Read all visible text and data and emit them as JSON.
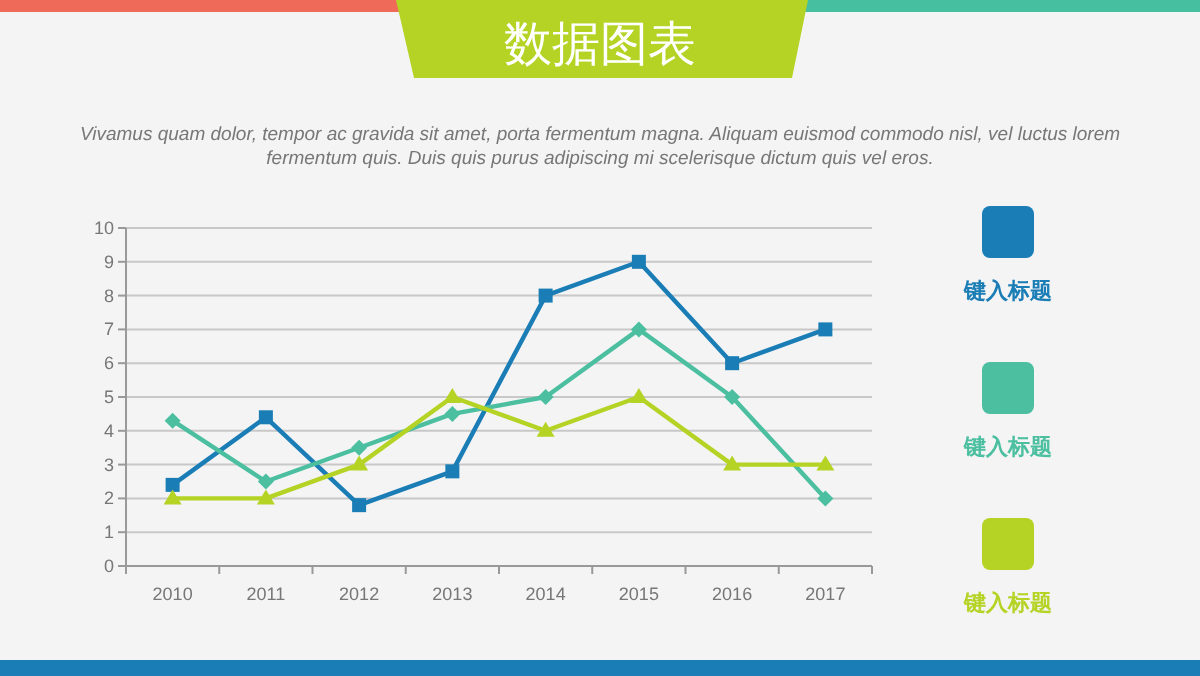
{
  "chart_data": {
    "type": "line",
    "title": "数据图表",
    "subtitle": "Vivamus quam dolor, tempor ac gravida sit amet, porta fermentum magna. Aliquam euismod commodo nisl, vel luctus lorem fermentum quis. Duis quis purus adipiscing mi scelerisque dictum quis vel eros.",
    "categories": [
      "2010",
      "2011",
      "2012",
      "2013",
      "2014",
      "2015",
      "2016",
      "2017"
    ],
    "series": [
      {
        "name": "键入标题",
        "color": "#1a7db5",
        "marker": "square",
        "values": [
          2.4,
          4.4,
          1.8,
          2.8,
          8,
          9,
          6,
          7
        ]
      },
      {
        "name": "键入标题",
        "color": "#4bbfa0",
        "marker": "diamond",
        "values": [
          4.3,
          2.5,
          3.5,
          4.5,
          5,
          7,
          5,
          2
        ]
      },
      {
        "name": "键入标题",
        "color": "#b5d325",
        "marker": "triangle",
        "values": [
          2,
          2,
          3,
          5,
          4,
          5,
          3,
          3
        ]
      }
    ],
    "ylim": [
      0,
      10
    ],
    "yticks": [
      0,
      1,
      2,
      3,
      4,
      5,
      6,
      7,
      8,
      9,
      10
    ],
    "grid": "y",
    "legend": "right",
    "line_style": "solid"
  }
}
